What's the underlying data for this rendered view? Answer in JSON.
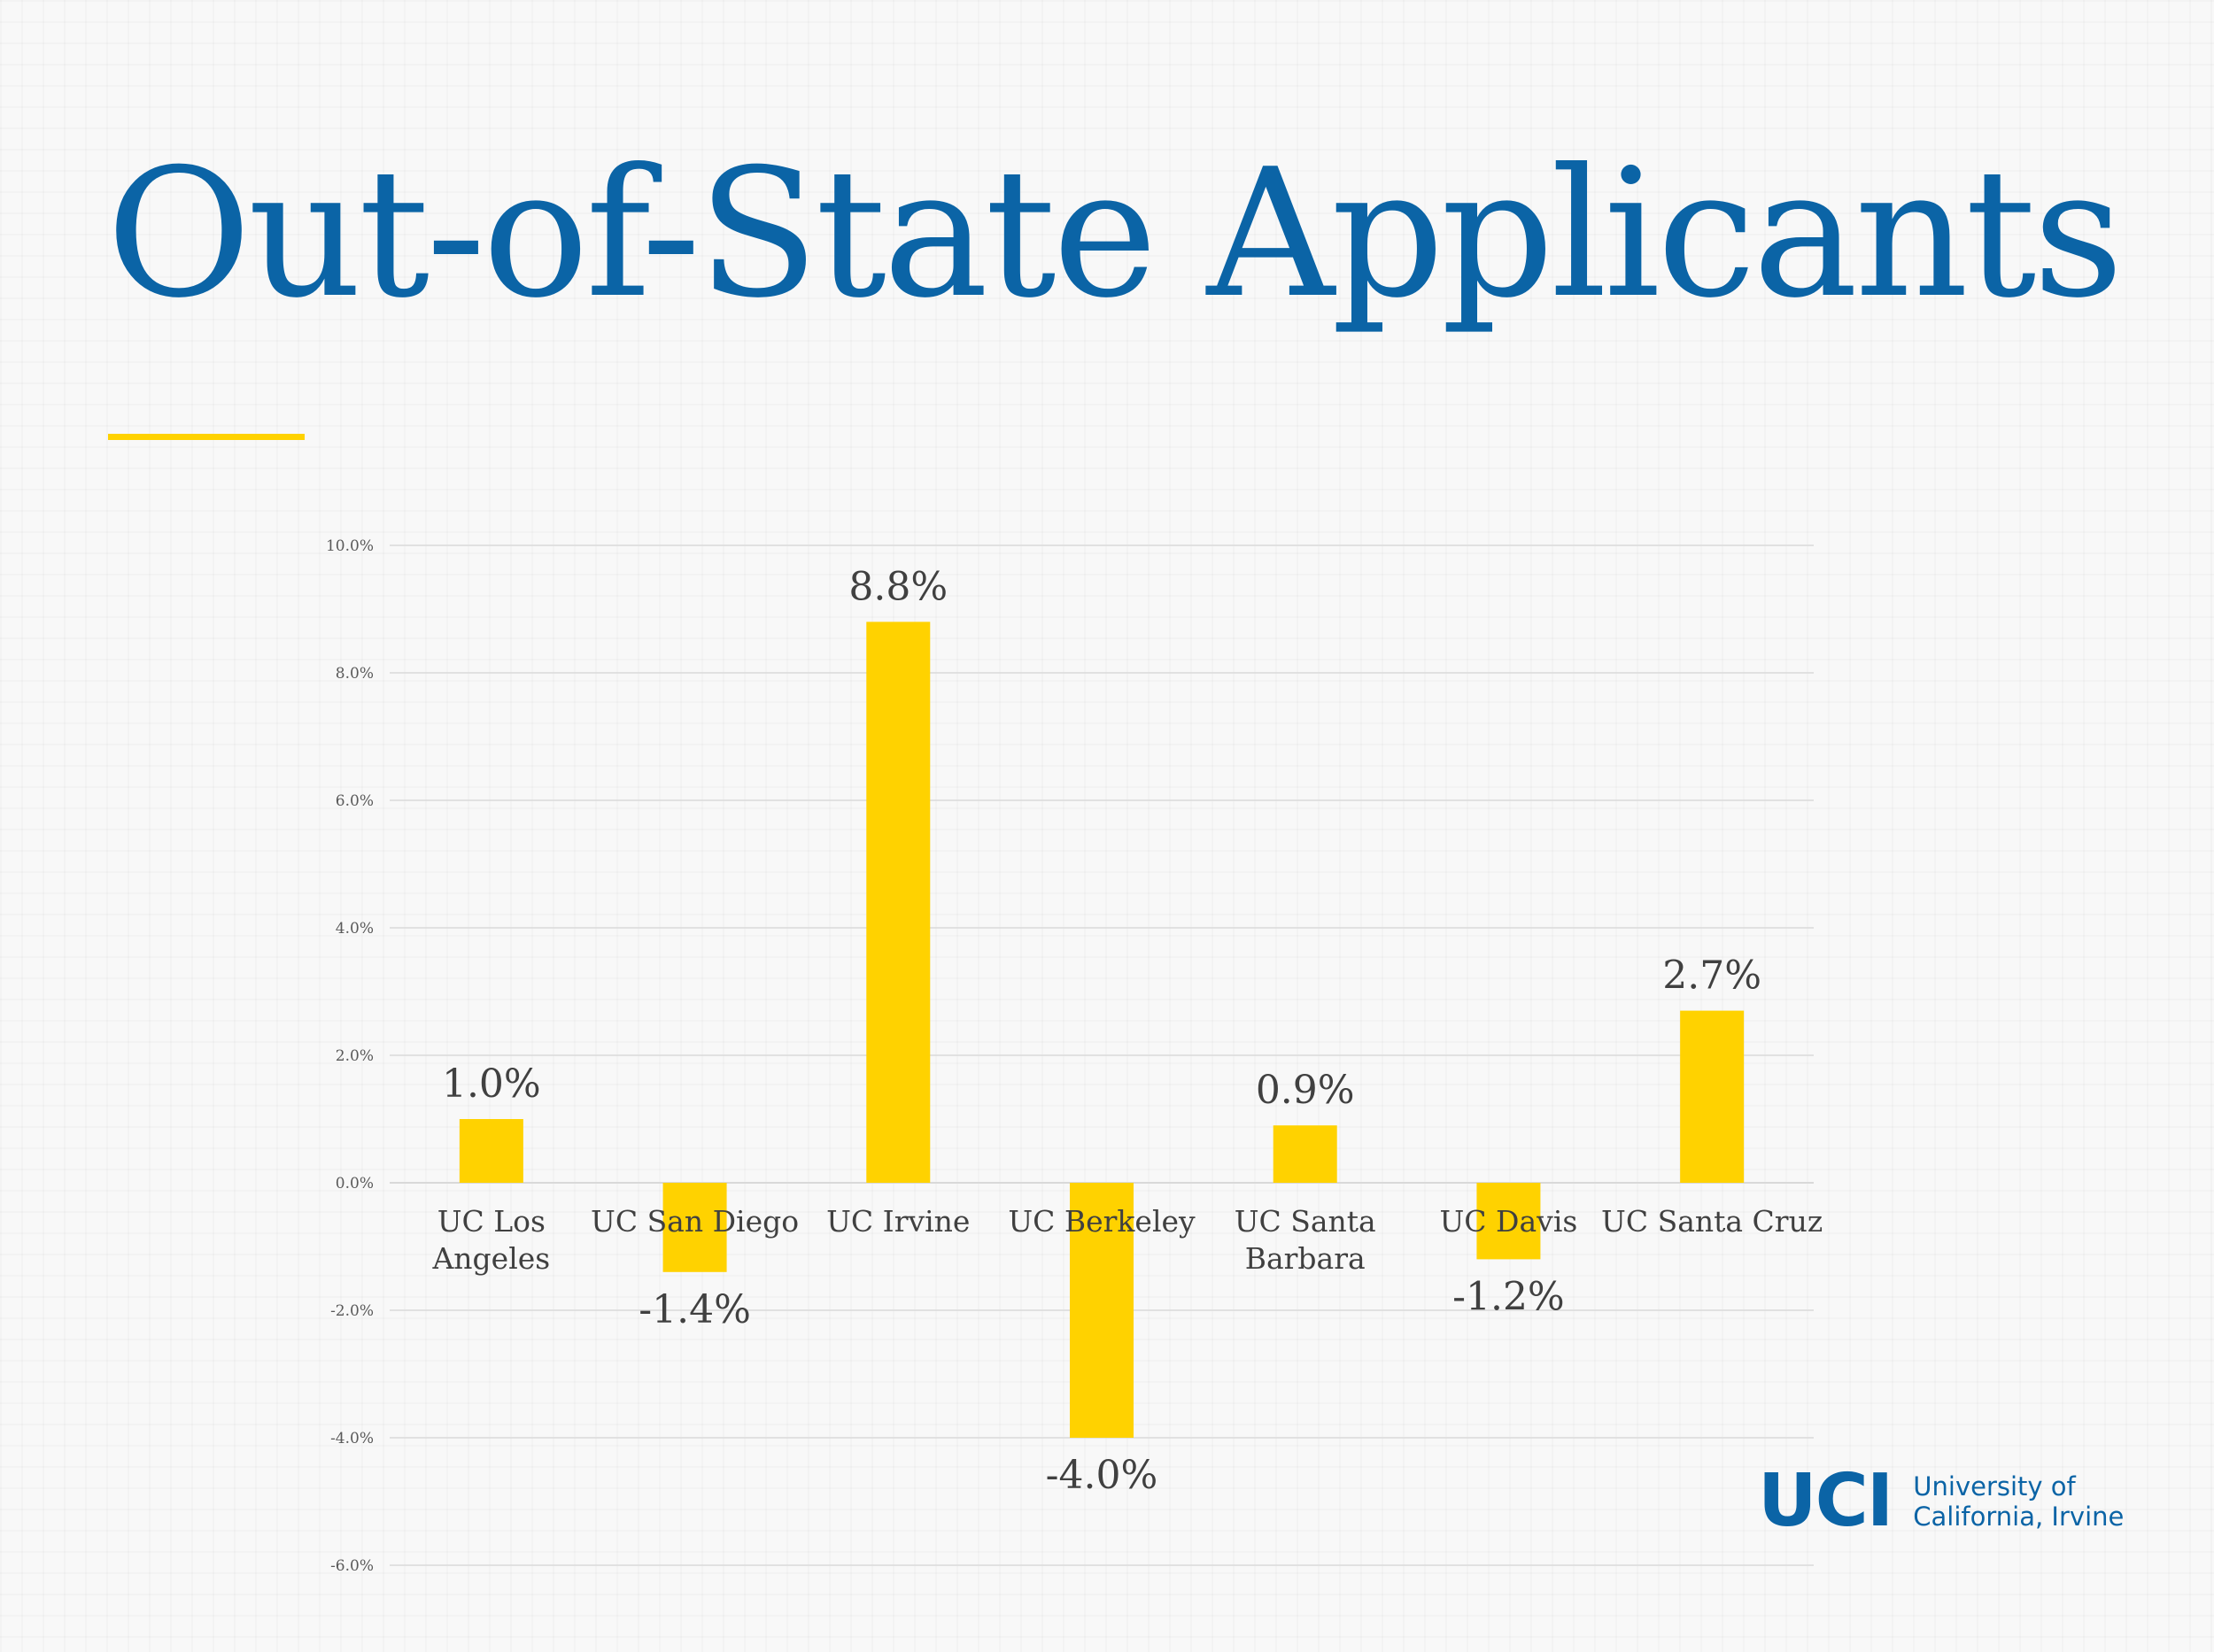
{
  "slide": {
    "title": "Out-of-State Applicants",
    "logo": {
      "mark": "UCI",
      "line1": "University of",
      "line2": "California, Irvine"
    }
  },
  "colors": {
    "title": "#0b64a6",
    "accent": "#ffd200",
    "bar": "#ffd200",
    "text": "#404040",
    "grid": "#d9d9d9"
  },
  "chart_data": {
    "type": "bar",
    "categories": [
      [
        "UC Los",
        "Angeles"
      ],
      [
        "UC San Diego"
      ],
      [
        "UC Irvine"
      ],
      [
        "UC Berkeley"
      ],
      [
        "UC Santa",
        "Barbara"
      ],
      [
        "UC Davis"
      ],
      [
        "UC Santa Cruz"
      ]
    ],
    "values": [
      1.0,
      -1.4,
      8.8,
      -4.0,
      0.9,
      -1.2,
      2.7
    ],
    "data_labels": [
      "1.0%",
      "-1.4%",
      "8.8%",
      "-4.0%",
      "0.9%",
      "-1.2%",
      "2.7%"
    ],
    "y_ticks": [
      10,
      8,
      6,
      4,
      2,
      0,
      -2,
      -4,
      -6
    ],
    "y_tick_labels": [
      "10.0%",
      "8.0%",
      "6.0%",
      "4.0%",
      "2.0%",
      "0.0%",
      "-2.0%",
      "-4.0%",
      "-6.0%"
    ],
    "ylim": [
      -6,
      10
    ],
    "grid": true,
    "legend": false
  }
}
